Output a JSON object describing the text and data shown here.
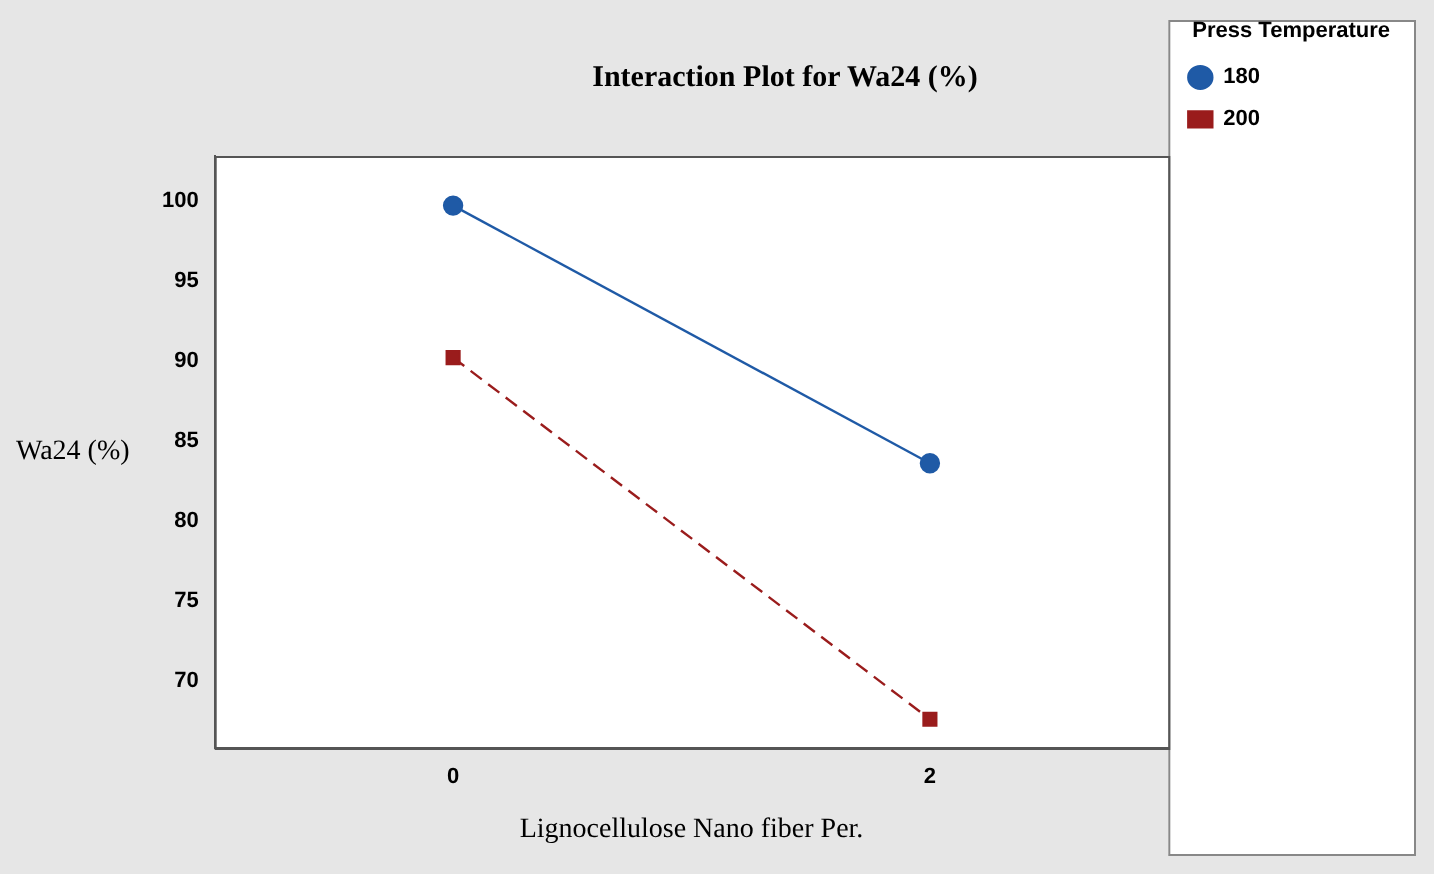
{
  "chart_data": {
    "type": "line",
    "title": "Interaction Plot for Wa24 (%)",
    "xlabel": "Lignocellulose Nano fiber Per.",
    "ylabel": "Wa24 (%)",
    "legend_title": "Press Temperature",
    "x": [
      0,
      2
    ],
    "series": [
      {
        "name": "180",
        "color": "#1f5aa6",
        "values": [
          99.7,
          83.6
        ],
        "marker": "circle",
        "line_style": "solid"
      },
      {
        "name": "200",
        "color": "#9a1c1c",
        "values": [
          90.2,
          67.6
        ],
        "marker": "square",
        "line_style": "dashed"
      }
    ],
    "xlim": [
      -1,
      3
    ],
    "xticks": [
      0,
      2
    ],
    "ylim": [
      65.8,
      102.8
    ],
    "yticks": [
      70,
      75,
      80,
      85,
      90,
      95,
      100
    ],
    "grid": false,
    "legend": "top right"
  }
}
